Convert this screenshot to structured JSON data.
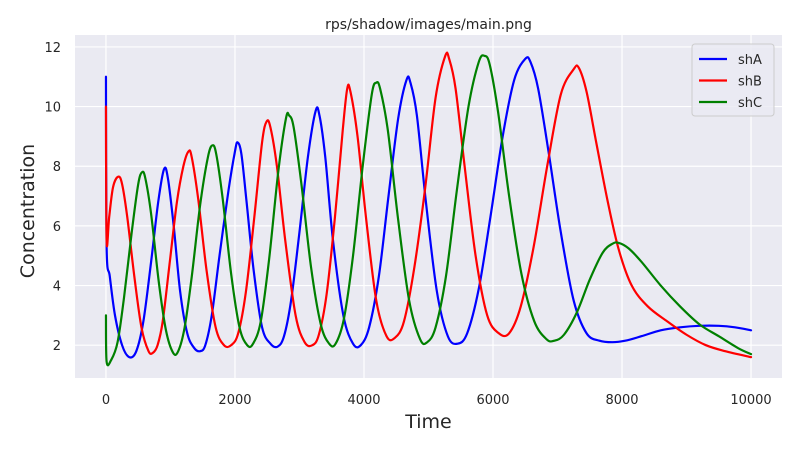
{
  "chart_data": {
    "type": "line",
    "title": "rps/shadow/images/main.png",
    "xlabel": "Time",
    "ylabel": "Concentration",
    "xlim": [
      -480,
      10480
    ],
    "ylim": [
      0.9,
      12.4
    ],
    "xticks": [
      0,
      2000,
      4000,
      6000,
      8000,
      10000
    ],
    "yticks": [
      2,
      4,
      6,
      8,
      10,
      12
    ],
    "grid": true,
    "style": "seaborn-darkgrid",
    "legend": "top-right",
    "series": [
      {
        "name": "shA",
        "color": "#0000ff",
        "points": [
          [
            0,
            11
          ],
          [
            10,
            5.3
          ],
          [
            60,
            4.3
          ],
          [
            140,
            3
          ],
          [
            250,
            2
          ],
          [
            360,
            1.6
          ],
          [
            470,
            1.8
          ],
          [
            580,
            2.8
          ],
          [
            700,
            4.8
          ],
          [
            810,
            6.8
          ],
          [
            900,
            7.9
          ],
          [
            960,
            7.6
          ],
          [
            1050,
            6
          ],
          [
            1150,
            3.8
          ],
          [
            1260,
            2.4
          ],
          [
            1370,
            1.9
          ],
          [
            1460,
            1.8
          ],
          [
            1540,
            2
          ],
          [
            1640,
            3
          ],
          [
            1760,
            5
          ],
          [
            1900,
            7.2
          ],
          [
            2000,
            8.5
          ],
          [
            2040,
            8.8
          ],
          [
            2100,
            8.4
          ],
          [
            2180,
            6.8
          ],
          [
            2290,
            4.5
          ],
          [
            2420,
            2.6
          ],
          [
            2550,
            2.05
          ],
          [
            2660,
            1.95
          ],
          [
            2760,
            2.3
          ],
          [
            2870,
            3.5
          ],
          [
            3000,
            5.8
          ],
          [
            3130,
            8.3
          ],
          [
            3250,
            9.85
          ],
          [
            3310,
            9.7
          ],
          [
            3400,
            8.3
          ],
          [
            3520,
            5.5
          ],
          [
            3680,
            3
          ],
          [
            3830,
            2.05
          ],
          [
            3950,
            2
          ],
          [
            4080,
            2.6
          ],
          [
            4230,
            4.3
          ],
          [
            4380,
            7
          ],
          [
            4530,
            9.6
          ],
          [
            4660,
            10.9
          ],
          [
            4720,
            10.8
          ],
          [
            4820,
            9.7
          ],
          [
            4960,
            6.8
          ],
          [
            5130,
            3.8
          ],
          [
            5300,
            2.3
          ],
          [
            5450,
            2.05
          ],
          [
            5600,
            2.4
          ],
          [
            5780,
            3.9
          ],
          [
            5960,
            6.3
          ],
          [
            6150,
            9
          ],
          [
            6330,
            10.9
          ],
          [
            6500,
            11.6
          ],
          [
            6580,
            11.5
          ],
          [
            6700,
            10.6
          ],
          [
            6860,
            8.5
          ],
          [
            7050,
            5.8
          ],
          [
            7250,
            3.5
          ],
          [
            7450,
            2.4
          ],
          [
            7650,
            2.15
          ],
          [
            7850,
            2.1
          ],
          [
            8050,
            2.15
          ],
          [
            8300,
            2.3
          ],
          [
            8600,
            2.5
          ],
          [
            8900,
            2.6
          ],
          [
            9200,
            2.65
          ],
          [
            9500,
            2.65
          ],
          [
            9750,
            2.6
          ],
          [
            10000,
            2.5
          ]
        ]
      },
      {
        "name": "shB",
        "color": "#ff0000",
        "points": [
          [
            0,
            10
          ],
          [
            10,
            5.5
          ],
          [
            50,
            6.3
          ],
          [
            110,
            7.3
          ],
          [
            190,
            7.65
          ],
          [
            250,
            7.4
          ],
          [
            330,
            6.3
          ],
          [
            440,
            4.3
          ],
          [
            550,
            2.6
          ],
          [
            660,
            1.8
          ],
          [
            730,
            1.75
          ],
          [
            800,
            2
          ],
          [
            880,
            2.8
          ],
          [
            990,
            4.8
          ],
          [
            1100,
            6.8
          ],
          [
            1200,
            8
          ],
          [
            1280,
            8.5
          ],
          [
            1330,
            8.3
          ],
          [
            1430,
            6.9
          ],
          [
            1560,
            4.5
          ],
          [
            1700,
            2.6
          ],
          [
            1830,
            2.0
          ],
          [
            1940,
            2.0
          ],
          [
            2050,
            2.4
          ],
          [
            2170,
            3.8
          ],
          [
            2300,
            6.3
          ],
          [
            2420,
            8.8
          ],
          [
            2490,
            9.5
          ],
          [
            2550,
            9.3
          ],
          [
            2650,
            8
          ],
          [
            2780,
            5.5
          ],
          [
            2940,
            3
          ],
          [
            3080,
            2.1
          ],
          [
            3200,
            2
          ],
          [
            3300,
            2.35
          ],
          [
            3420,
            3.7
          ],
          [
            3550,
            6.3
          ],
          [
            3670,
            9.2
          ],
          [
            3740,
            10.6
          ],
          [
            3790,
            10.5
          ],
          [
            3900,
            9
          ],
          [
            4030,
            6.3
          ],
          [
            4190,
            3.5
          ],
          [
            4350,
            2.3
          ],
          [
            4480,
            2.25
          ],
          [
            4620,
            2.8
          ],
          [
            4780,
            4.6
          ],
          [
            4950,
            7.3
          ],
          [
            5110,
            10.3
          ],
          [
            5260,
            11.7
          ],
          [
            5320,
            11.6
          ],
          [
            5420,
            10.6
          ],
          [
            5560,
            8
          ],
          [
            5730,
            5
          ],
          [
            5910,
            3
          ],
          [
            6090,
            2.4
          ],
          [
            6250,
            2.4
          ],
          [
            6430,
            3.3
          ],
          [
            6630,
            5.3
          ],
          [
            6840,
            8
          ],
          [
            7050,
            10.4
          ],
          [
            7250,
            11.25
          ],
          [
            7330,
            11.3
          ],
          [
            7450,
            10.5
          ],
          [
            7600,
            8.8
          ],
          [
            7780,
            6.8
          ],
          [
            7950,
            5.2
          ],
          [
            8150,
            4
          ],
          [
            8400,
            3.3
          ],
          [
            8700,
            2.8
          ],
          [
            9000,
            2.35
          ],
          [
            9300,
            2
          ],
          [
            9600,
            1.8
          ],
          [
            10000,
            1.6
          ]
        ]
      },
      {
        "name": "shC",
        "color": "#008000",
        "points": [
          [
            0,
            3
          ],
          [
            10,
            1.45
          ],
          [
            80,
            1.5
          ],
          [
            180,
            2.1
          ],
          [
            280,
            3.6
          ],
          [
            400,
            5.8
          ],
          [
            500,
            7.4
          ],
          [
            560,
            7.8
          ],
          [
            610,
            7.6
          ],
          [
            700,
            6.4
          ],
          [
            820,
            4.1
          ],
          [
            930,
            2.5
          ],
          [
            1040,
            1.75
          ],
          [
            1120,
            1.8
          ],
          [
            1220,
            2.6
          ],
          [
            1330,
            4.3
          ],
          [
            1460,
            6.7
          ],
          [
            1580,
            8.3
          ],
          [
            1650,
            8.7
          ],
          [
            1710,
            8.4
          ],
          [
            1810,
            6.9
          ],
          [
            1940,
            4.4
          ],
          [
            2070,
            2.6
          ],
          [
            2190,
            2
          ],
          [
            2280,
            2.05
          ],
          [
            2400,
            2.8
          ],
          [
            2530,
            4.9
          ],
          [
            2670,
            7.8
          ],
          [
            2790,
            9.6
          ],
          [
            2840,
            9.7
          ],
          [
            2910,
            9.3
          ],
          [
            3030,
            7.4
          ],
          [
            3180,
            4.6
          ],
          [
            3330,
            2.7
          ],
          [
            3460,
            2.05
          ],
          [
            3560,
            2.05
          ],
          [
            3690,
            2.9
          ],
          [
            3830,
            5
          ],
          [
            3980,
            8
          ],
          [
            4120,
            10.4
          ],
          [
            4190,
            10.8
          ],
          [
            4250,
            10.6
          ],
          [
            4370,
            9.2
          ],
          [
            4530,
            6.2
          ],
          [
            4700,
            3.5
          ],
          [
            4870,
            2.2
          ],
          [
            4980,
            2.1
          ],
          [
            5110,
            2.6
          ],
          [
            5270,
            4.3
          ],
          [
            5440,
            7.2
          ],
          [
            5620,
            10
          ],
          [
            5780,
            11.5
          ],
          [
            5870,
            11.7
          ],
          [
            5950,
            11.4
          ],
          [
            6080,
            9.8
          ],
          [
            6250,
            7
          ],
          [
            6440,
            4.4
          ],
          [
            6640,
            2.8
          ],
          [
            6830,
            2.2
          ],
          [
            6950,
            2.15
          ],
          [
            7100,
            2.35
          ],
          [
            7300,
            3.1
          ],
          [
            7500,
            4.2
          ],
          [
            7700,
            5.1
          ],
          [
            7850,
            5.4
          ],
          [
            7950,
            5.43
          ],
          [
            8100,
            5.25
          ],
          [
            8300,
            4.8
          ],
          [
            8600,
            4
          ],
          [
            8900,
            3.3
          ],
          [
            9200,
            2.7
          ],
          [
            9500,
            2.3
          ],
          [
            9800,
            1.9
          ],
          [
            10000,
            1.7
          ]
        ]
      }
    ]
  }
}
